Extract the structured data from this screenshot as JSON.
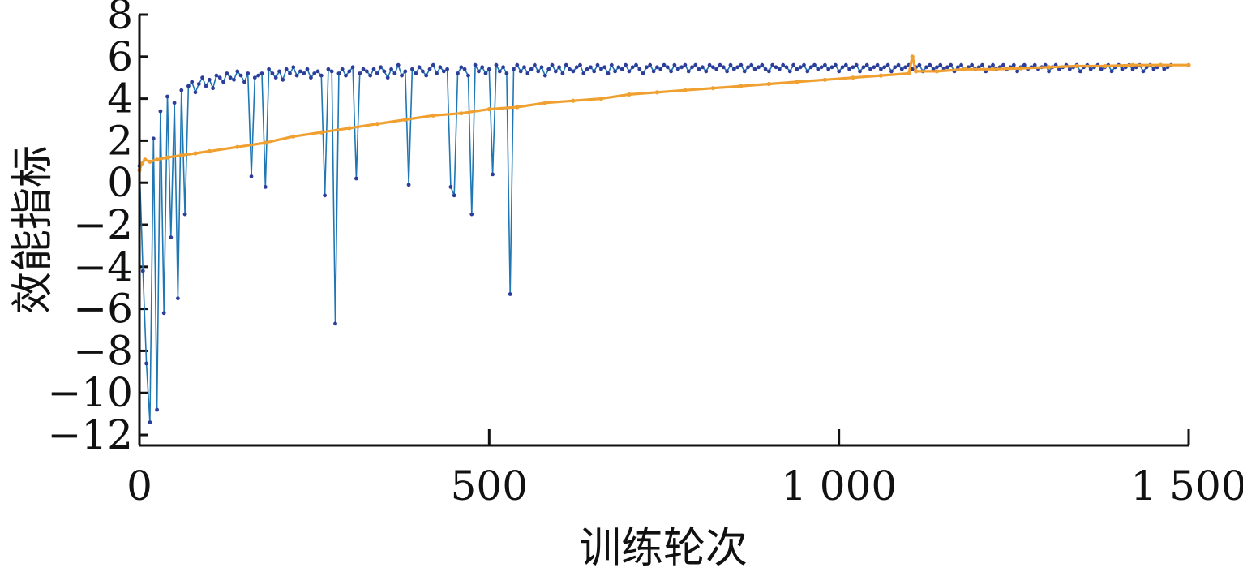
{
  "chart_data": {
    "type": "line",
    "xlabel": "训练轮次",
    "ylabel": "效能指标",
    "xlim": [
      0,
      1500
    ],
    "ylim": [
      -12.5,
      8
    ],
    "xticks": [
      0,
      500,
      1000,
      1500
    ],
    "xtick_labels": [
      "0",
      "500",
      "1 000",
      "1 500"
    ],
    "yticks": [
      -12,
      -10,
      -8,
      -6,
      -4,
      -2,
      0,
      2,
      4,
      6,
      8
    ],
    "ytick_labels": [
      "−12",
      "−10",
      "−8",
      "−6",
      "−4",
      "−2",
      "0",
      "2",
      "4",
      "6",
      "8"
    ],
    "grid": false,
    "colors": {
      "raw": "#1f77b4",
      "raw_marker": "#2c3e9a",
      "smoothed": "#f0a030"
    },
    "series": [
      {
        "key": "raw",
        "x_start": 0,
        "x_step": 5,
        "values": [
          0.8,
          -4.2,
          -8.6,
          -11.4,
          2.1,
          -10.8,
          3.4,
          -6.2,
          4.1,
          -2.6,
          3.8,
          -5.5,
          4.4,
          -1.5,
          4.6,
          4.8,
          4.3,
          4.7,
          5.0,
          4.6,
          4.9,
          4.5,
          5.1,
          5.0,
          4.8,
          5.2,
          5.0,
          4.9,
          5.3,
          5.1,
          4.8,
          5.2,
          0.3,
          5.0,
          5.1,
          5.2,
          -0.2,
          5.4,
          5.2,
          5.0,
          5.3,
          4.9,
          5.4,
          5.2,
          5.5,
          5.1,
          5.3,
          5.2,
          5.4,
          5.0,
          5.2,
          5.3,
          5.1,
          -0.6,
          5.4,
          5.3,
          -6.7,
          5.2,
          5.4,
          5.1,
          5.3,
          5.5,
          0.2,
          5.2,
          5.4,
          5.3,
          5.1,
          5.4,
          5.2,
          5.5,
          5.3,
          5.0,
          5.4,
          5.2,
          5.6,
          5.1,
          5.3,
          -0.1,
          5.4,
          5.2,
          5.5,
          5.3,
          5.1,
          5.4,
          5.6,
          5.2,
          5.5,
          5.3,
          5.4,
          -0.2,
          -0.6,
          5.2,
          5.5,
          5.4,
          5.1,
          -1.5,
          5.6,
          5.3,
          5.5,
          5.2,
          5.4,
          0.4,
          5.6,
          5.3,
          5.5,
          5.2,
          -5.3,
          5.4,
          5.6,
          5.3,
          5.5,
          5.2,
          5.4,
          5.6,
          5.3,
          5.5,
          5.1,
          5.4,
          5.6,
          5.3,
          5.5,
          5.2,
          5.6,
          5.4,
          5.3,
          5.5,
          5.6,
          5.2,
          5.4,
          5.5,
          5.3,
          5.6,
          5.4,
          5.5,
          5.2,
          5.6,
          5.3,
          5.5,
          5.4,
          5.6,
          5.3,
          5.5,
          5.6,
          5.4,
          5.2,
          5.5,
          5.6,
          5.3,
          5.5,
          5.4,
          5.6,
          5.5,
          5.3,
          5.6,
          5.4,
          5.5,
          5.6,
          5.3,
          5.5,
          5.6,
          5.4,
          5.5,
          5.3,
          5.6,
          5.5,
          5.4,
          5.6,
          5.5,
          5.3,
          5.6,
          5.4,
          5.5,
          5.6,
          5.3,
          5.5,
          5.6,
          5.4,
          5.5,
          5.6,
          5.4,
          5.3,
          5.6,
          5.5,
          5.4,
          5.6,
          5.5,
          5.3,
          5.6,
          5.4,
          5.5,
          5.6,
          5.3,
          5.5,
          5.6,
          5.4,
          5.5,
          5.6,
          5.4,
          5.5,
          5.6,
          5.3,
          5.5,
          5.6,
          5.4,
          5.5,
          5.6,
          5.3,
          5.5,
          5.6,
          5.4,
          5.5,
          5.6,
          5.4,
          5.5,
          5.6,
          5.3,
          5.5,
          5.6,
          5.4,
          5.5,
          5.6,
          5.4,
          5.5,
          5.6,
          5.3,
          5.5,
          5.6,
          5.4,
          5.5,
          5.6,
          5.4,
          5.5,
          5.6,
          5.3,
          5.5,
          5.6,
          5.4,
          5.5,
          5.6,
          5.4,
          5.5,
          5.6,
          5.3,
          5.5,
          5.6,
          5.4,
          5.5,
          5.6,
          5.4,
          5.5,
          5.6,
          5.3,
          5.5,
          5.6,
          5.4,
          5.5,
          5.6,
          5.4,
          5.5,
          5.6,
          5.3,
          5.5,
          5.6,
          5.4,
          5.5,
          5.6,
          5.4,
          5.5,
          5.6,
          5.3,
          5.5,
          5.6,
          5.4,
          5.5,
          5.6,
          5.4,
          5.5,
          5.6,
          5.3,
          5.5,
          5.6,
          5.4,
          5.5,
          5.6,
          5.4,
          5.5,
          5.6,
          5.3,
          5.5,
          5.6,
          5.4,
          5.5,
          5.6,
          5.4,
          5.5,
          5.6
        ]
      },
      {
        "key": "smoothed",
        "x": [
          0,
          3,
          8,
          15,
          25,
          40,
          60,
          80,
          100,
          140,
          180,
          220,
          260,
          300,
          340,
          380,
          420,
          460,
          500,
          540,
          580,
          620,
          660,
          700,
          740,
          780,
          820,
          860,
          900,
          940,
          980,
          1020,
          1060,
          1100,
          1105,
          1110,
          1140,
          1180,
          1220,
          1260,
          1300,
          1340,
          1380,
          1420,
          1460,
          1500
        ],
        "values": [
          0.6,
          0.9,
          1.1,
          1.0,
          1.1,
          1.2,
          1.3,
          1.4,
          1.5,
          1.7,
          1.9,
          2.2,
          2.4,
          2.6,
          2.8,
          3.0,
          3.2,
          3.3,
          3.5,
          3.6,
          3.8,
          3.9,
          4.0,
          4.2,
          4.3,
          4.4,
          4.5,
          4.6,
          4.7,
          4.8,
          4.9,
          5.0,
          5.1,
          5.2,
          6.0,
          5.3,
          5.3,
          5.4,
          5.4,
          5.45,
          5.5,
          5.55,
          5.55,
          5.6,
          5.6,
          5.6
        ]
      }
    ]
  }
}
